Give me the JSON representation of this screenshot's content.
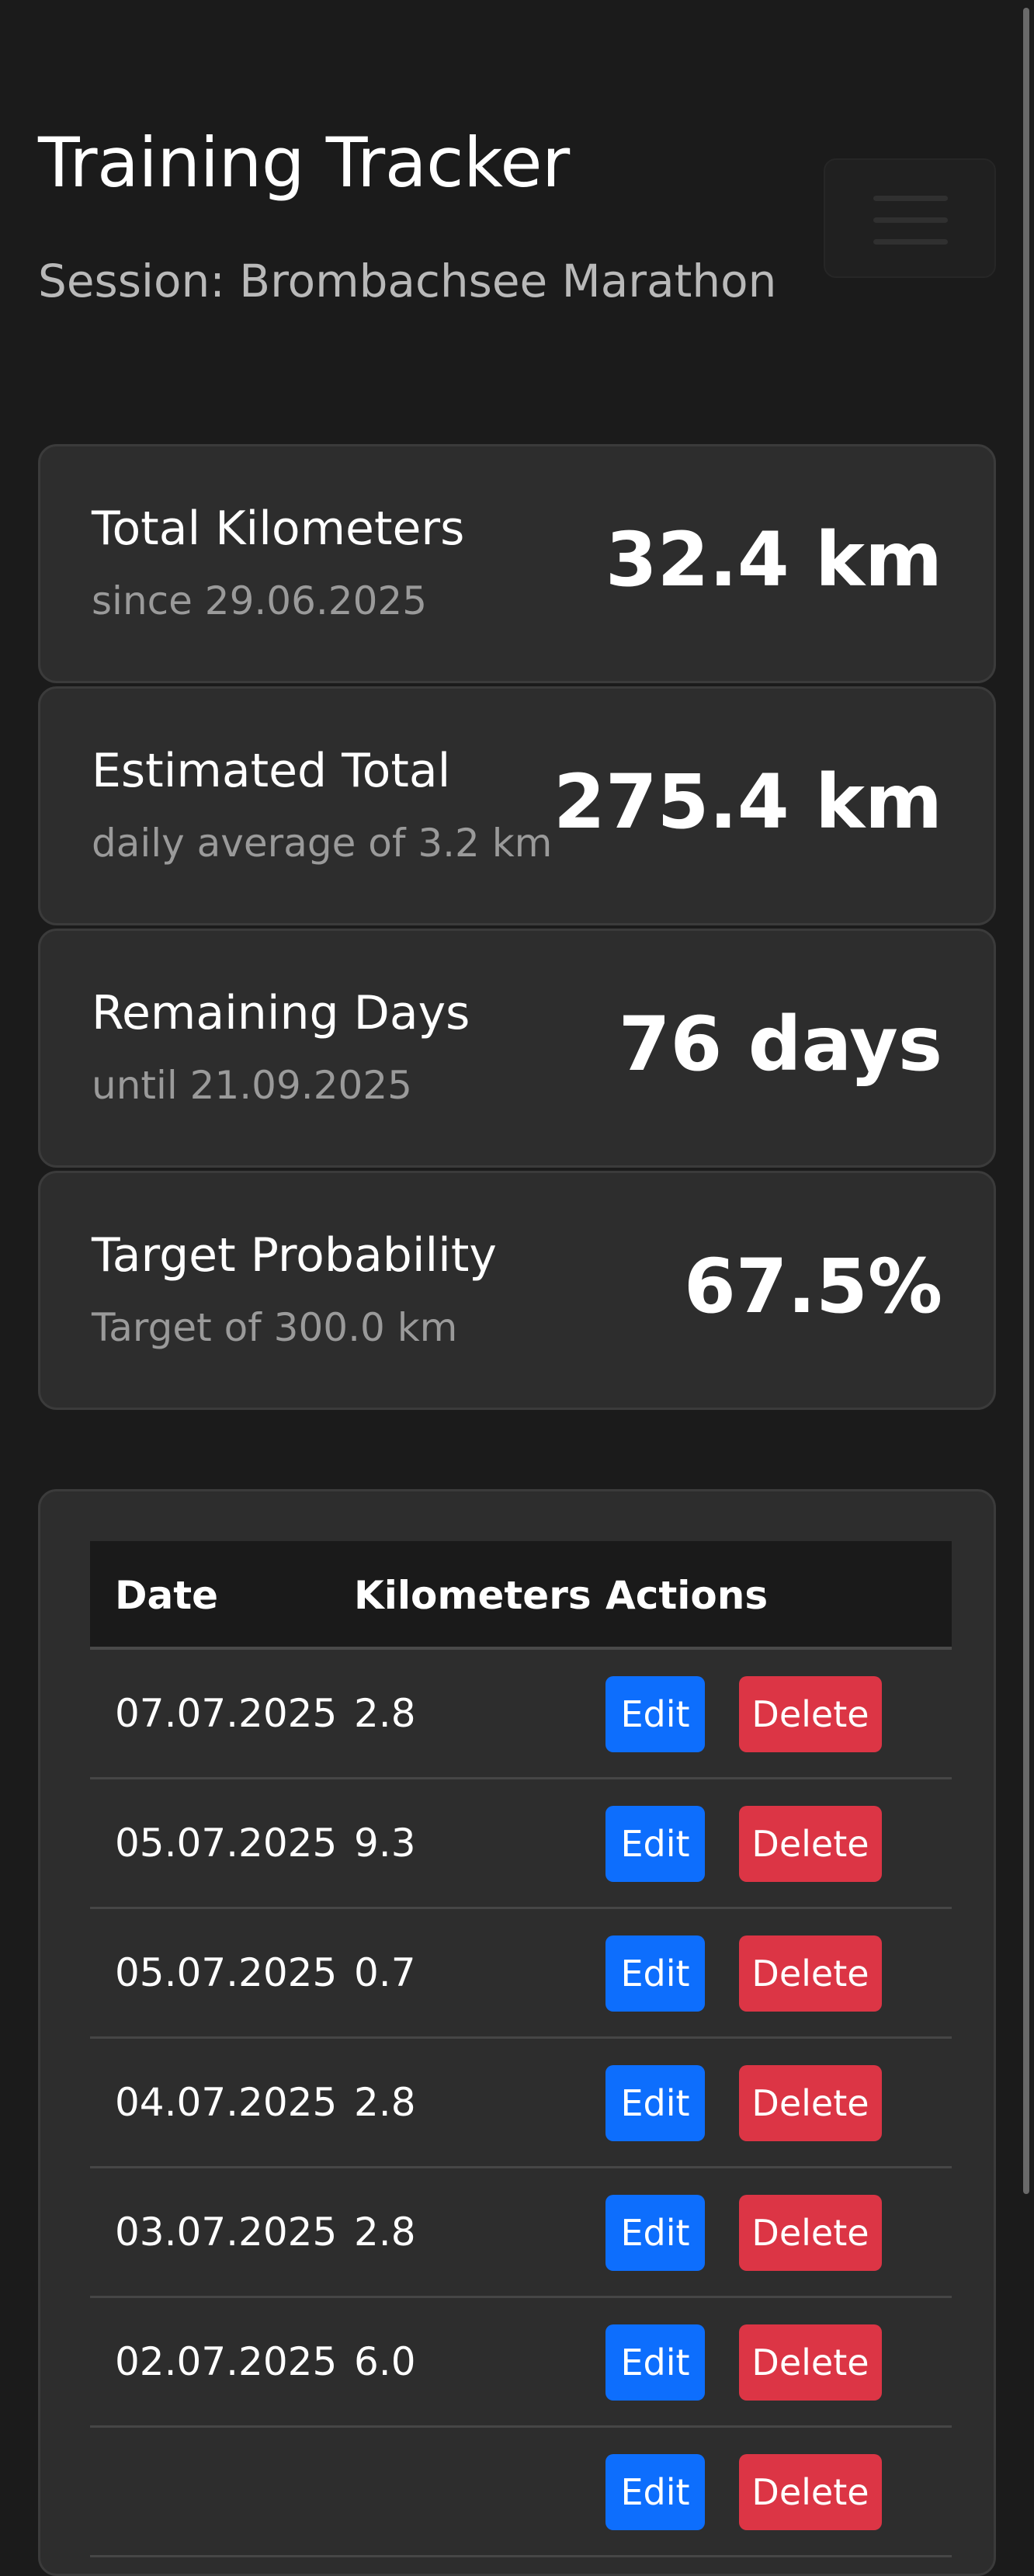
{
  "header": {
    "title": "Training Tracker",
    "session": "Session: Brombachsee Marathon"
  },
  "stats": [
    {
      "label": "Total Kilometers",
      "sub": "since 29.06.2025",
      "value": "32.4 km"
    },
    {
      "label": "Estimated Total",
      "sub": "daily average of 3.2 km",
      "value": "275.4 km"
    },
    {
      "label": "Remaining Days",
      "sub": "until 21.09.2025",
      "value": "76 days"
    },
    {
      "label": "Target Probability",
      "sub": "Target of 300.0 km",
      "value": "67.5%"
    }
  ],
  "table": {
    "headers": {
      "date": "Date",
      "km": "Kilometers",
      "actions": "Actions"
    },
    "edit_label": "Edit",
    "delete_label": "Delete",
    "rows": [
      {
        "date": "07.07.2025",
        "km": "2.8"
      },
      {
        "date": "05.07.2025",
        "km": "9.3"
      },
      {
        "date": "05.07.2025",
        "km": "0.7"
      },
      {
        "date": "04.07.2025",
        "km": "2.8"
      },
      {
        "date": "03.07.2025",
        "km": "2.8"
      },
      {
        "date": "02.07.2025",
        "km": "6.0"
      }
    ]
  },
  "colors": {
    "background": "#1b1b1b",
    "card": "#2d2d2d",
    "edit": "#0d6efd",
    "delete": "#dc3545"
  },
  "icons": {
    "menu": "hamburger-menu-icon"
  }
}
